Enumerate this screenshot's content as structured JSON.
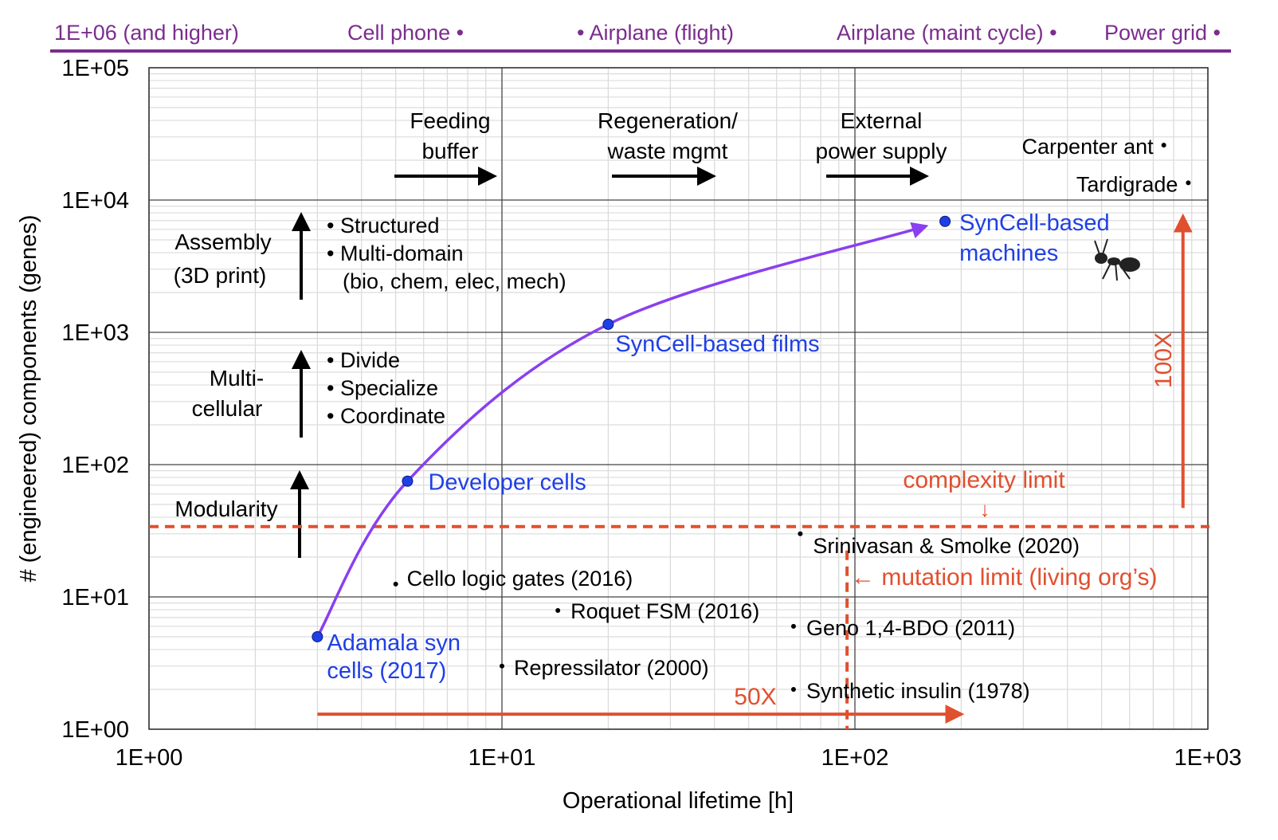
{
  "colors": {
    "purple_banner": "#7b2d8e",
    "curve": "#8a3ff0",
    "blue": "#1f3fe6",
    "red": "#e0502f",
    "black": "#000000"
  },
  "top_banner": [
    "1E+06 (and higher)",
    "Cell phone •",
    "• Airplane (flight)",
    "Airplane (maint cycle) •",
    "Power grid •"
  ],
  "chart_data": {
    "type": "scatter",
    "xscale": "log",
    "yscale": "log",
    "xlim": [
      1,
      1000
    ],
    "ylim": [
      1,
      100000
    ],
    "xlabel": "Operational lifetime [h]",
    "ylabel": "# (engineered) components (genes)",
    "xticks": [
      "1E+00",
      "1E+01",
      "1E+02",
      "1E+03"
    ],
    "yticks": [
      "1E+00",
      "1E+01",
      "1E+02",
      "1E+03",
      "1E+04",
      "1E+05"
    ],
    "grid": true,
    "synthetic_cell_series": [
      {
        "name": "Adamala syn cells (2017)",
        "lines": [
          "Adamala syn",
          "cells (2017)"
        ],
        "x": 3,
        "y": 5
      },
      {
        "name": "Developer cells",
        "lines": [
          "Developer cells"
        ],
        "x": 5.4,
        "y": 75
      },
      {
        "name": "SynCell-based films",
        "lines": [
          "SynCell-based films"
        ],
        "x": 20,
        "y": 1150
      },
      {
        "name": "SynCell-based machines",
        "lines": [
          "SynCell-based",
          "machines"
        ],
        "x": 180,
        "y": 6900
      }
    ],
    "reference_points": [
      {
        "lines": [
          "Cello logic gates (2016)"
        ],
        "x": 5,
        "y": 12.5
      },
      {
        "lines": [
          "Roquet FSM (2016)"
        ],
        "x": 14.4,
        "y": 7.9
      },
      {
        "lines": [
          "Repressilator (2000)"
        ],
        "x": 10,
        "y": 3
      },
      {
        "lines": [
          "Srinivasan & Smolke (2020)"
        ],
        "x": 70,
        "y": 30
      },
      {
        "lines": [
          "Geno 1,4-BDO (2011)"
        ],
        "x": 67,
        "y": 6
      },
      {
        "lines": [
          "Synthetic insulin (1978)"
        ],
        "x": 67,
        "y": 2
      },
      {
        "lines": [
          "Carpenter ant"
        ],
        "x": 750,
        "y": 26000
      },
      {
        "lines": [
          "Tardigrade"
        ],
        "x": 880,
        "y": 13500
      }
    ],
    "limits": {
      "complexity_limit": {
        "label": "complexity limit",
        "arrow": "↓",
        "y": 34
      },
      "mutation_limit": {
        "label": "← mutation limit (living org’s)",
        "x": 95
      }
    },
    "improvements": {
      "lifetime": {
        "label": "50X",
        "from_x": 3,
        "to_x": 200,
        "y": 1.3
      },
      "complexity": {
        "label": "100X",
        "x": 850,
        "from_y": 47,
        "to_y": 7500
      }
    },
    "lifetime_stages": [
      {
        "lines": [
          "Feeding",
          "buffer"
        ]
      },
      {
        "lines": [
          "Regeneration/",
          "waste mgmt"
        ]
      },
      {
        "lines": [
          "External",
          "power supply"
        ]
      }
    ],
    "complexity_stages": [
      {
        "lines": [
          "Assembly",
          "(3D print)"
        ],
        "bullets": [
          "Structured",
          "Multi-domain",
          "(bio, chem, elec, mech)"
        ]
      },
      {
        "lines": [
          "Multi-",
          "cellular"
        ],
        "bullets": [
          "Divide",
          "Specialize",
          "Coordinate"
        ]
      },
      {
        "lines": [
          "Modularity"
        ],
        "bullets": []
      }
    ]
  }
}
